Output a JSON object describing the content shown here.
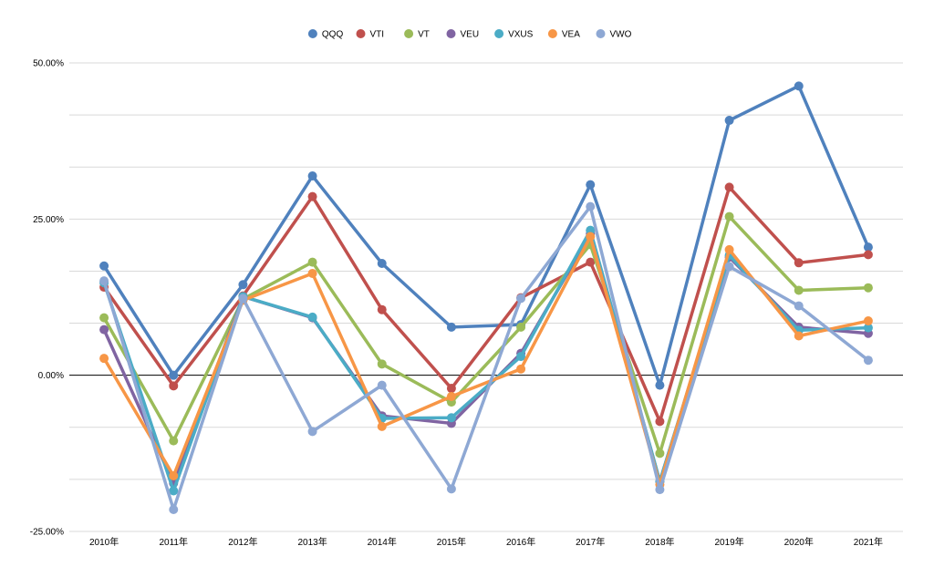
{
  "chart_data": {
    "type": "line",
    "title": "",
    "xlabel": "",
    "ylabel": "",
    "categories": [
      "2010年",
      "2011年",
      "2012年",
      "2013年",
      "2014年",
      "2015年",
      "2016年",
      "2017年",
      "2018年",
      "2019年",
      "2020年",
      "2021年"
    ],
    "ylim": [
      -0.25,
      0.5
    ],
    "y_ticks": [
      -0.25,
      0,
      0.25,
      0.5
    ],
    "y_tick_labels": [
      "-25.00%",
      "0.00%",
      "25.00%",
      "50.00%"
    ],
    "y_format": "percent",
    "grid": true,
    "legend_position": "top",
    "series": [
      {
        "name": "QQQ",
        "color": "#4F81BD",
        "values": [
          0.175,
          0.0,
          0.145,
          0.319,
          0.179,
          0.077,
          0.081,
          0.305,
          -0.016,
          0.408,
          0.463,
          0.205
        ]
      },
      {
        "name": "VTI",
        "color": "#C0504D",
        "values": [
          0.141,
          -0.017,
          0.127,
          0.286,
          0.105,
          -0.021,
          0.124,
          0.181,
          -0.074,
          0.301,
          0.18,
          0.193
        ]
      },
      {
        "name": "VT",
        "color": "#9BBB59",
        "values": [
          0.092,
          -0.105,
          0.122,
          0.181,
          0.018,
          -0.043,
          0.077,
          0.209,
          -0.125,
          0.254,
          0.136,
          0.14
        ]
      },
      {
        "name": "VEU",
        "color": "#8064A2",
        "values": [
          0.073,
          -0.173,
          0.126,
          0.092,
          -0.065,
          -0.077,
          0.035,
          0.226,
          -0.17,
          0.189,
          0.077,
          0.067
        ]
      },
      {
        "name": "VXUS",
        "color": "#4BACC6",
        "values": [
          0.148,
          -0.185,
          0.126,
          0.093,
          -0.069,
          -0.068,
          0.03,
          0.232,
          -0.17,
          0.192,
          0.072,
          0.076
        ]
      },
      {
        "name": "VEA",
        "color": "#F79646",
        "values": [
          0.027,
          -0.161,
          0.12,
          0.163,
          -0.082,
          -0.034,
          0.01,
          0.222,
          -0.175,
          0.201,
          0.063,
          0.087
        ]
      },
      {
        "name": "VWO",
        "color": "#8EA8D4",
        "values": [
          0.151,
          -0.215,
          0.123,
          -0.09,
          -0.016,
          -0.182,
          0.123,
          0.27,
          -0.183,
          0.174,
          0.111,
          0.024
        ]
      }
    ]
  }
}
